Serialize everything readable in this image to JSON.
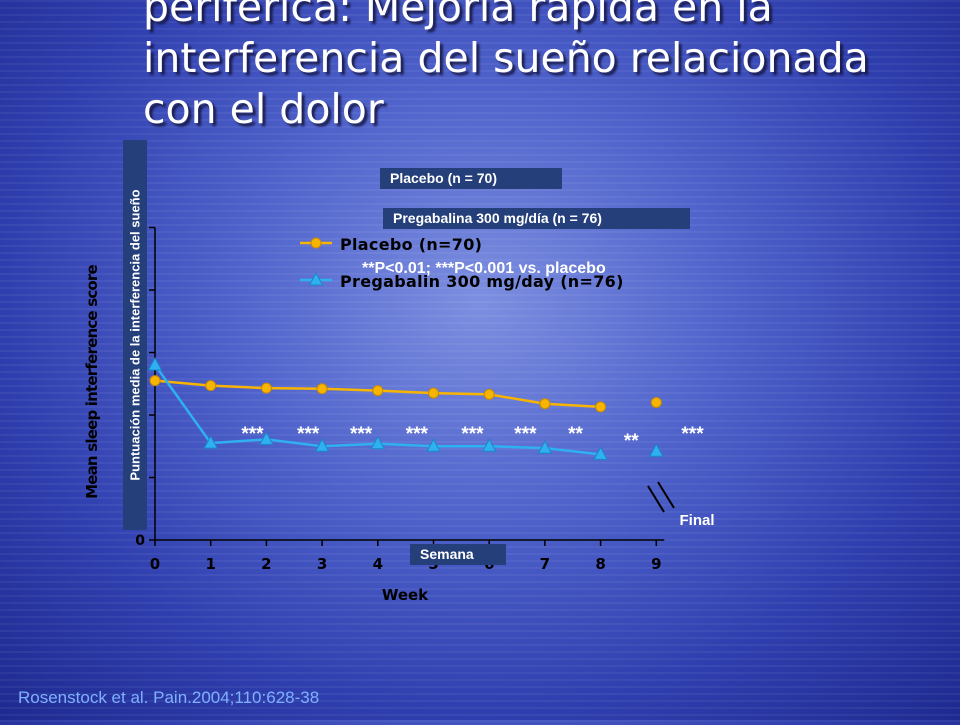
{
  "title_lines": [
    "periférica: Mejoría rápida en la",
    "interferencia del sueño relacionada",
    "con el dolor"
  ],
  "labels": {
    "placebo_box": "Placebo (n = 70)",
    "pregabalina_box": "Pregabalina 300 mg/día (n = 76)",
    "pvalue_note": "**P<0.01; ***P<0.001 vs. placebo",
    "y_axis_es": "Puntuación media de la interferencia del sueño",
    "x_axis_es": "Semana",
    "final": "Final"
  },
  "citation": "Rosenstock et al. Pain.2004;110:628-38",
  "chart_data": {
    "type": "line",
    "xlabel": "Week",
    "ylabel": "Mean sleep interference score",
    "x_ticks": [
      "0",
      "1",
      "2",
      "3",
      "4",
      "5",
      "6",
      "7",
      "8",
      "9"
    ],
    "y_ticks": [
      "0",
      "1",
      "2",
      "3",
      "4",
      "5"
    ],
    "ylim": [
      0,
      5
    ],
    "grid": false,
    "legend_position": "top",
    "series": [
      {
        "name": "Placebo (n=70)",
        "color": "#f7b400",
        "marker": "circle",
        "x": [
          0,
          1,
          2,
          3,
          4,
          5,
          6,
          7,
          8
        ],
        "values": [
          2.55,
          2.47,
          2.43,
          2.42,
          2.39,
          2.35,
          2.33,
          2.18,
          2.13
        ],
        "final": {
          "x": 9,
          "value": 2.2
        }
      },
      {
        "name": "Pregabalin 300 mg/day (n=76)",
        "color": "#2fb0f0",
        "marker": "triangle",
        "x": [
          0,
          1,
          2,
          3,
          4,
          5,
          6,
          7,
          8
        ],
        "values": [
          2.8,
          1.55,
          1.61,
          1.5,
          1.54,
          1.5,
          1.5,
          1.47,
          1.37
        ],
        "final": {
          "x": 9,
          "value": 1.42
        }
      }
    ],
    "significance": [
      {
        "x": 1.75,
        "label": "***"
      },
      {
        "x": 2.75,
        "label": "***"
      },
      {
        "x": 3.7,
        "label": "***"
      },
      {
        "x": 4.7,
        "label": "***"
      },
      {
        "x": 5.7,
        "label": "***"
      },
      {
        "x": 6.65,
        "label": "***"
      },
      {
        "x": 7.55,
        "label": "**"
      },
      {
        "x": 8.55,
        "label": "**"
      },
      {
        "x": 9.65,
        "label": "***"
      }
    ]
  }
}
